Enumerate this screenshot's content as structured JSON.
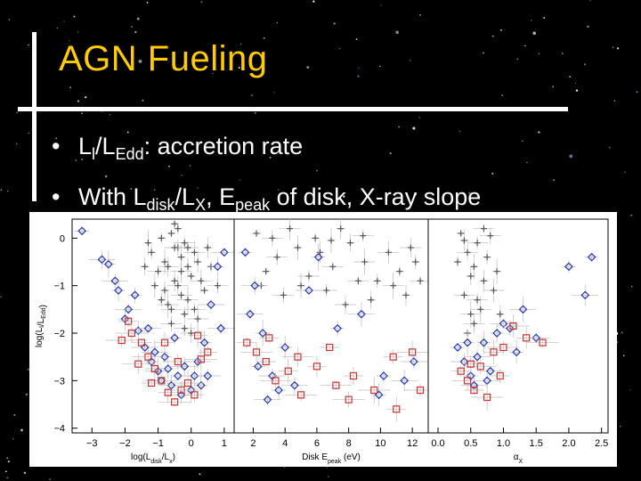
{
  "slide": {
    "title": "AGN Fueling",
    "bullet_glyph": "•",
    "bullet1": {
      "a": "L",
      "a_sub": "l",
      "b": "/L",
      "b_sub": "Edd",
      "c": ": accretion rate"
    },
    "bullet2": {
      "a": "With L",
      "a_sub": "disk",
      "b": "/L",
      "b_sub": "X",
      "c": ", E",
      "c_sub": "peak",
      "d": " of disk, X-ray slope"
    }
  },
  "colors": {
    "title": "#ffcc00",
    "text": "#ffffff",
    "background": "#000000",
    "grey_points": "#555555",
    "blue_points": "#2233bb",
    "red_points": "#cc3333"
  },
  "chart_data": {
    "type": "scatter",
    "ylabel": "log(Lₗ/Lₑdd)",
    "ylabel_parts": {
      "a": "log(L",
      "a_sub": "l",
      "b": "/L",
      "b_sub": "Edd",
      "c": ")"
    },
    "y_ticks": [
      "0",
      "−1",
      "−2",
      "−3",
      "−4"
    ],
    "ylim": [
      -4.1,
      0.4
    ],
    "panels": [
      {
        "xlabel_parts": {
          "a": "log(L",
          "a_sub": "disk",
          "b": "/L",
          "b_sub": "x",
          "c": ")"
        },
        "x_ticks": [
          "−3",
          "−2",
          "−1",
          "0",
          "1"
        ],
        "x_tick_values": [
          -3,
          -2,
          -1,
          0,
          1
        ],
        "xlim": [
          -3.6,
          1.3
        ],
        "series": [
          {
            "marker": "plus",
            "points": [
              [
                -0.6,
                0.1
              ],
              [
                -0.4,
                -0.2
              ],
              [
                -0.8,
                -0.5
              ],
              [
                -0.2,
                -0.1
              ],
              [
                -0.5,
                -0.9
              ],
              [
                -0.3,
                -1.2
              ],
              [
                -0.1,
                -0.6
              ],
              [
                -0.7,
                -1.4
              ],
              [
                -0.2,
                -1.6
              ],
              [
                0.1,
                -0.3
              ],
              [
                -0.9,
                0.0
              ],
              [
                -0.4,
                -1.0
              ],
              [
                0.0,
                -0.8
              ],
              [
                -0.6,
                -1.8
              ],
              [
                -0.3,
                -0.4
              ],
              [
                -1.0,
                -0.7
              ],
              [
                0.2,
                -0.5
              ],
              [
                -0.5,
                -0.2
              ],
              [
                -0.8,
                -1.1
              ],
              [
                -0.1,
                -1.3
              ],
              [
                -1.2,
                -0.3
              ],
              [
                0.3,
                -0.9
              ],
              [
                -0.4,
                0.2
              ],
              [
                -0.7,
                -0.6
              ],
              [
                0.4,
                -1.1
              ],
              [
                -0.2,
                -1.9
              ],
              [
                -1.1,
                -1.0
              ],
              [
                0.1,
                -1.5
              ],
              [
                0.5,
                -0.2
              ],
              [
                -0.6,
                -1.5
              ],
              [
                -1.4,
                -0.6
              ],
              [
                0.2,
                -1.7
              ],
              [
                -0.9,
                -1.3
              ],
              [
                -0.3,
                -0.7
              ],
              [
                0.6,
                -0.6
              ],
              [
                0.0,
                -2.0
              ],
              [
                -0.5,
                0.3
              ],
              [
                0.8,
                -1.0
              ],
              [
                -1.3,
                -0.1
              ],
              [
                -0.1,
                -0.2
              ]
            ]
          },
          {
            "marker": "diamond",
            "points": [
              [
                -3.3,
                0.15
              ],
              [
                -2.7,
                -0.45
              ],
              [
                -2.5,
                -0.55
              ],
              [
                -2.3,
                -0.9
              ],
              [
                -2.2,
                -1.1
              ],
              [
                -1.9,
                -1.5
              ],
              [
                -1.6,
                -1.95
              ],
              [
                -1.4,
                -2.3
              ],
              [
                -1.2,
                -2.6
              ],
              [
                -1.0,
                -2.8
              ],
              [
                -0.8,
                -2.5
              ],
              [
                -0.6,
                -3.1
              ],
              [
                -0.4,
                -2.9
              ],
              [
                -0.2,
                -2.7
              ],
              [
                0.0,
                -3.2
              ],
              [
                0.2,
                -2.6
              ],
              [
                0.4,
                -2.2
              ],
              [
                0.6,
                -1.4
              ],
              [
                0.8,
                -0.6
              ],
              [
                1.0,
                -0.3
              ],
              [
                -1.7,
                -1.2
              ],
              [
                -1.1,
                -2.4
              ],
              [
                -0.5,
                -2.1
              ],
              [
                0.1,
                -2.9
              ],
              [
                -0.9,
                -3.0
              ],
              [
                -0.3,
                -3.3
              ],
              [
                0.3,
                -3.1
              ],
              [
                0.5,
                -2.9
              ],
              [
                -2.0,
                -1.7
              ],
              [
                0.9,
                -1.9
              ],
              [
                -0.7,
                -2.75
              ],
              [
                -1.3,
                -1.9
              ]
            ]
          },
          {
            "marker": "square",
            "points": [
              [
                -1.9,
                -1.75
              ],
              [
                -1.8,
                -2.0
              ],
              [
                -1.5,
                -2.2
              ],
              [
                -1.3,
                -2.5
              ],
              [
                -1.1,
                -2.75
              ],
              [
                -0.9,
                -3.0
              ],
              [
                -0.7,
                -3.25
              ],
              [
                -0.5,
                -3.45
              ],
              [
                -0.3,
                -3.2
              ],
              [
                -0.1,
                -3.05
              ],
              [
                0.1,
                -3.3
              ],
              [
                0.3,
                -2.55
              ],
              [
                0.5,
                -2.4
              ],
              [
                -1.6,
                -2.65
              ],
              [
                -1.2,
                -3.05
              ],
              [
                -0.4,
                -2.6
              ],
              [
                0.2,
                -2.05
              ],
              [
                -2.1,
                -2.15
              ],
              [
                -0.8,
                -2.2
              ]
            ]
          }
        ]
      },
      {
        "xlabel_parts": {
          "a": "Disk E",
          "a_sub": "peak",
          "b": " (eV)",
          "b_sub": "",
          "c": ""
        },
        "x_ticks": [
          "2",
          "4",
          "6",
          "8",
          "10",
          "12"
        ],
        "x_tick_values": [
          2,
          4,
          6,
          8,
          10,
          12
        ],
        "xlim": [
          0.8,
          13.0
        ],
        "series": [
          {
            "marker": "plus",
            "points": [
              [
                2.2,
                0.1
              ],
              [
                3.5,
                -0.4
              ],
              [
                4.8,
                -0.2
              ],
              [
                5.5,
                -0.8
              ],
              [
                6.2,
                -0.3
              ],
              [
                7.0,
                -0.6
              ],
              [
                8.1,
                -0.1
              ],
              [
                9.0,
                -0.5
              ],
              [
                9.8,
                -0.9
              ],
              [
                10.5,
                -0.3
              ],
              [
                11.2,
                -0.7
              ],
              [
                11.9,
                -0.2
              ],
              [
                2.8,
                -0.7
              ],
              [
                3.9,
                -1.2
              ],
              [
                5.0,
                -1.0
              ],
              [
                6.6,
                -1.1
              ],
              [
                7.5,
                0.2
              ],
              [
                8.6,
                -0.9
              ],
              [
                9.4,
                -1.3
              ],
              [
                10.8,
                -1.0
              ],
              [
                12.2,
                -0.5
              ],
              [
                4.3,
                0.2
              ],
              [
                5.9,
                0.0
              ],
              [
                7.8,
                -1.4
              ],
              [
                2.5,
                -1.0
              ],
              [
                3.2,
                0.0
              ],
              [
                6.9,
                -0.05
              ],
              [
                8.9,
                0.05
              ],
              [
                11.6,
                -1.2
              ],
              [
                12.5,
                -0.9
              ]
            ]
          },
          {
            "marker": "diamond",
            "points": [
              [
                1.5,
                -0.3
              ],
              [
                2.1,
                -1.0
              ],
              [
                2.6,
                -2.0
              ],
              [
                3.2,
                -2.9
              ],
              [
                4.0,
                -2.3
              ],
              [
                1.8,
                -1.6
              ],
              [
                3.6,
                -3.2
              ],
              [
                5.5,
                -1.1
              ],
              [
                7.3,
                -1.9
              ],
              [
                8.8,
                -1.6
              ],
              [
                10.2,
                -2.9
              ],
              [
                11.5,
                -3.0
              ],
              [
                2.3,
                -2.7
              ],
              [
                4.6,
                -3.1
              ],
              [
                6.1,
                -0.4
              ],
              [
                12.1,
                -2.6
              ],
              [
                9.9,
                -3.3
              ],
              [
                2.9,
                -3.4
              ]
            ]
          },
          {
            "marker": "square",
            "points": [
              [
                1.6,
                -2.2
              ],
              [
                2.2,
                -2.4
              ],
              [
                2.8,
                -2.6
              ],
              [
                3.4,
                -3.0
              ],
              [
                4.2,
                -2.8
              ],
              [
                5.0,
                -3.3
              ],
              [
                6.0,
                -2.7
              ],
              [
                7.2,
                -3.1
              ],
              [
                8.3,
                -2.9
              ],
              [
                9.6,
                -3.2
              ],
              [
                10.8,
                -2.5
              ],
              [
                12.0,
                -2.4
              ],
              [
                3.0,
                -2.1
              ],
              [
                4.8,
                -2.5
              ],
              [
                6.8,
                -2.3
              ],
              [
                8.0,
                -3.4
              ],
              [
                11.0,
                -3.6
              ],
              [
                12.5,
                -3.2
              ]
            ]
          }
        ]
      },
      {
        "xlabel_parts": {
          "a": "α",
          "a_sub": "X",
          "b": "",
          "b_sub": "",
          "c": ""
        },
        "x_ticks": [
          "0.0",
          "0.5",
          "1.0",
          "1.5",
          "2.0",
          "2.5"
        ],
        "x_tick_values": [
          0.0,
          0.5,
          1.0,
          1.5,
          2.0,
          2.5
        ],
        "xlim": [
          -0.15,
          2.6
        ],
        "series": [
          {
            "marker": "plus",
            "points": [
              [
                0.35,
                0.1
              ],
              [
                0.45,
                -0.3
              ],
              [
                0.55,
                -0.6
              ],
              [
                0.6,
                -0.1
              ],
              [
                0.7,
                -0.9
              ],
              [
                0.4,
                -1.2
              ],
              [
                0.5,
                -0.8
              ],
              [
                0.65,
                -1.5
              ],
              [
                0.75,
                -0.4
              ],
              [
                0.85,
                -1.1
              ],
              [
                0.3,
                -0.5
              ],
              [
                0.55,
                -1.8
              ],
              [
                0.45,
                -2.0
              ],
              [
                0.8,
                0.05
              ],
              [
                0.9,
                -0.7
              ],
              [
                0.6,
                -1.3
              ],
              [
                0.4,
                -0.05
              ],
              [
                0.7,
                0.2
              ],
              [
                0.95,
                -1.6
              ],
              [
                0.5,
                -1.6
              ]
            ]
          },
          {
            "marker": "diamond",
            "points": [
              [
                0.3,
                -2.3
              ],
              [
                0.4,
                -2.6
              ],
              [
                0.5,
                -2.9
              ],
              [
                0.6,
                -2.5
              ],
              [
                0.7,
                -2.2
              ],
              [
                0.8,
                -2.8
              ],
              [
                0.9,
                -2.0
              ],
              [
                1.0,
                -1.8
              ],
              [
                1.1,
                -1.9
              ],
              [
                1.3,
                -1.5
              ],
              [
                2.0,
                -0.6
              ],
              [
                2.25,
                -1.2
              ],
              [
                2.35,
                -0.4
              ],
              [
                0.55,
                -3.1
              ],
              [
                0.45,
                -2.2
              ],
              [
                0.75,
                -3.0
              ],
              [
                1.2,
                -2.4
              ],
              [
                1.5,
                -2.1
              ]
            ]
          },
          {
            "marker": "square",
            "points": [
              [
                0.35,
                -2.8
              ],
              [
                0.45,
                -3.0
              ],
              [
                0.55,
                -3.2
              ],
              [
                0.65,
                -2.7
              ],
              [
                0.85,
                -2.4
              ],
              [
                1.0,
                -2.3
              ],
              [
                1.35,
                -2.1
              ],
              [
                1.6,
                -2.2
              ],
              [
                0.5,
                -2.65
              ],
              [
                0.75,
                -3.35
              ],
              [
                0.95,
                -2.9
              ],
              [
                1.15,
                -1.85
              ]
            ]
          }
        ]
      }
    ]
  }
}
